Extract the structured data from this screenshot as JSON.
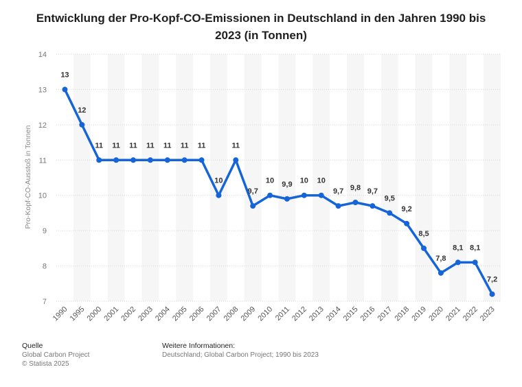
{
  "chart_data": {
    "type": "line",
    "title": "Entwicklung der Pro-Kopf-CO-Emissionen in Deutschland in den Jahren 1990 bis 2023 (in Tonnen)",
    "ylabel": "Pro-Kopf-CO-Ausstoß in Tonnen",
    "xlabel": "",
    "categories": [
      "1990",
      "1995",
      "2000",
      "2001",
      "2002",
      "2003",
      "2004",
      "2005",
      "2006",
      "2007",
      "2008",
      "2009",
      "2010",
      "2011",
      "2012",
      "2013",
      "2014",
      "2015",
      "2016",
      "2017",
      "2018",
      "2019",
      "2020",
      "2021",
      "2022",
      "2023"
    ],
    "values": [
      13,
      12,
      11,
      11,
      11,
      11,
      11,
      11,
      11,
      10,
      11,
      9.7,
      10,
      9.9,
      10,
      10,
      9.7,
      9.8,
      9.7,
      9.5,
      9.2,
      8.5,
      7.8,
      8.1,
      8.1,
      7.2
    ],
    "value_labels": [
      "13",
      "12",
      "11",
      "11",
      "11",
      "11",
      "11",
      "11",
      "11",
      "10",
      "11",
      "9,7",
      "10",
      "9,9",
      "10",
      "10",
      "9,7",
      "9,8",
      "9,7",
      "9,5",
      "9,2",
      "8,5",
      "7,8",
      "8,1",
      "8,1",
      "7,2"
    ],
    "ylim": [
      7,
      14
    ],
    "yticks": [
      7,
      8,
      9,
      10,
      11,
      12,
      13,
      14
    ],
    "grid": true,
    "line_color": "#1565d8",
    "band_color": "#f6f6f6"
  },
  "footer": {
    "source_heading": "Quelle",
    "source_lines": [
      "Global Carbon Project",
      "© Statista 2025"
    ],
    "info_heading": "Weitere Informationen:",
    "info_lines": [
      "Deutschland; Global Carbon Project; 1990 bis 2023"
    ]
  }
}
